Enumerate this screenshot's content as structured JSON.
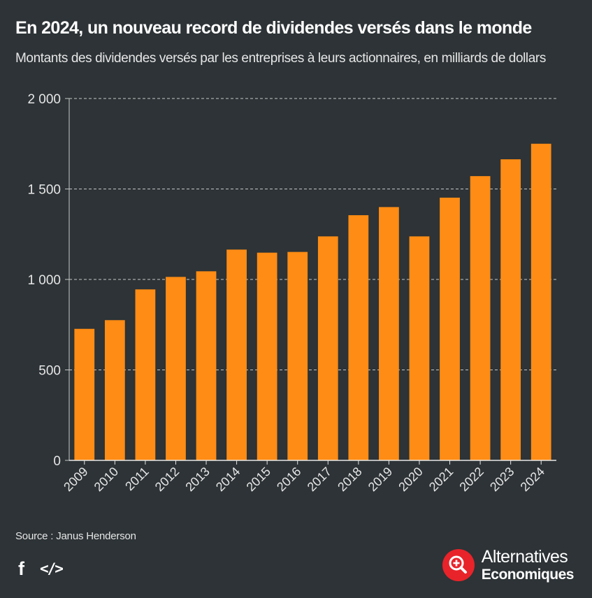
{
  "header": {
    "title": "En 2024, un nouveau record de dividendes versés dans le monde",
    "subtitle": "Montants des dividendes versés par les entreprises à leurs actionnaires, en milliards de dollars"
  },
  "chart_data": {
    "type": "bar",
    "categories": [
      "2009",
      "2010",
      "2011",
      "2012",
      "2013",
      "2014",
      "2015",
      "2016",
      "2017",
      "2018",
      "2019",
      "2020",
      "2021",
      "2022",
      "2023",
      "2024"
    ],
    "values": [
      727,
      775,
      945,
      1014,
      1045,
      1165,
      1148,
      1152,
      1238,
      1355,
      1400,
      1238,
      1452,
      1571,
      1664,
      1750
    ],
    "ylim": [
      0,
      2000
    ],
    "yticks": [
      0,
      500,
      1000,
      1500,
      2000
    ],
    "ytick_labels": [
      "0",
      "500",
      "1 000",
      "1 500",
      "2 000"
    ],
    "xlabel": "",
    "ylabel": "",
    "grid": true,
    "bar_color": "#ff8c14"
  },
  "footer": {
    "source": "Source : Janus Henderson",
    "social": {
      "facebook_glyph": "f",
      "embed_glyph": "</>"
    },
    "brand": {
      "line1": "Alternatives",
      "line2": "Economiques"
    }
  },
  "colors": {
    "background": "#2d3336",
    "bar": "#ff8c14",
    "grid": "#c8c8c8",
    "text": "#ffffff",
    "logo_red": "#e8232a"
  }
}
